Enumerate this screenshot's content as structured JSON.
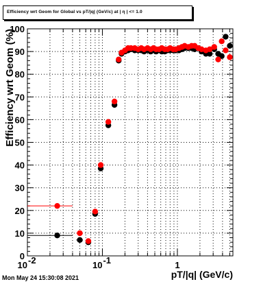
{
  "title": "Efficiency wrt Geom for Global vs pT/|q| (GeV/c) at | η | <= 1.0",
  "timestamp": "Mon May 24 15:30:08 2021",
  "chart_data": {
    "type": "scatter",
    "xlabel": "pT/|q| (GeV/c)",
    "ylabel": "Efficiency wrt Geom (%)",
    "x_scale": "log",
    "xlim": [
      0.01,
      5.5
    ],
    "ylim": [
      0,
      100
    ],
    "y_ticks": [
      0,
      10,
      20,
      30,
      40,
      50,
      60,
      70,
      80,
      90,
      100
    ],
    "x_tick_labels": [
      {
        "value": 0.01,
        "base": "10",
        "exp": "-2"
      },
      {
        "value": 0.1,
        "base": "10",
        "exp": "-1"
      },
      {
        "value": 1,
        "base": "1",
        "exp": ""
      }
    ],
    "grid": true,
    "series": [
      {
        "color": "#000000",
        "points": [
          {
            "x": 0.025,
            "y": 9,
            "xlo": 0.01,
            "xhi": 0.04
          },
          {
            "x": 0.05,
            "y": 7,
            "xlo": 0.045,
            "xhi": 0.055
          },
          {
            "x": 0.065,
            "y": 6
          },
          {
            "x": 0.08,
            "y": 18.5
          },
          {
            "x": 0.095,
            "y": 38.5,
            "xlo": 0.09,
            "xhi": 0.1
          },
          {
            "x": 0.12,
            "y": 57.5
          },
          {
            "x": 0.145,
            "y": 66.5
          },
          {
            "x": 0.165,
            "y": 86
          },
          {
            "x": 0.18,
            "y": 89
          },
          {
            "x": 0.2,
            "y": 90
          },
          {
            "x": 0.22,
            "y": 90.5
          },
          {
            "x": 0.24,
            "y": 91
          },
          {
            "x": 0.27,
            "y": 90.5
          },
          {
            "x": 0.3,
            "y": 90.5
          },
          {
            "x": 0.33,
            "y": 90.5
          },
          {
            "x": 0.36,
            "y": 90
          },
          {
            "x": 0.4,
            "y": 90.5
          },
          {
            "x": 0.44,
            "y": 90
          },
          {
            "x": 0.48,
            "y": 90.5
          },
          {
            "x": 0.52,
            "y": 90
          },
          {
            "x": 0.57,
            "y": 90.5
          },
          {
            "x": 0.62,
            "y": 90
          },
          {
            "x": 0.68,
            "y": 90
          },
          {
            "x": 0.74,
            "y": 90.5
          },
          {
            "x": 0.8,
            "y": 90.5
          },
          {
            "x": 0.88,
            "y": 90.5
          },
          {
            "x": 0.95,
            "y": 90.5
          },
          {
            "x": 1.05,
            "y": 90.5
          },
          {
            "x": 1.15,
            "y": 91
          },
          {
            "x": 1.25,
            "y": 91.5
          },
          {
            "x": 1.4,
            "y": 91.5
          },
          {
            "x": 1.55,
            "y": 91.5
          },
          {
            "x": 1.7,
            "y": 91
          },
          {
            "x": 1.9,
            "y": 91.5
          },
          {
            "x": 2.1,
            "y": 90
          },
          {
            "x": 2.4,
            "y": 89
          },
          {
            "x": 2.7,
            "y": 89
          },
          {
            "x": 3.1,
            "y": 91
          },
          {
            "x": 3.5,
            "y": 89
          },
          {
            "x": 3.9,
            "y": 88
          },
          {
            "x": 4.4,
            "y": 96.5
          },
          {
            "x": 5.0,
            "y": 92.5
          }
        ]
      },
      {
        "color": "#ff0000",
        "points": [
          {
            "x": 0.025,
            "y": 22,
            "xlo": 0.01,
            "xhi": 0.04
          },
          {
            "x": 0.05,
            "y": 10,
            "xlo": 0.045,
            "xhi": 0.055
          },
          {
            "x": 0.065,
            "y": 6.5
          },
          {
            "x": 0.08,
            "y": 19.5
          },
          {
            "x": 0.095,
            "y": 40,
            "xlo": 0.09,
            "xhi": 0.1
          },
          {
            "x": 0.12,
            "y": 59
          },
          {
            "x": 0.145,
            "y": 68
          },
          {
            "x": 0.165,
            "y": 86.5
          },
          {
            "x": 0.18,
            "y": 89.5
          },
          {
            "x": 0.2,
            "y": 90.5
          },
          {
            "x": 0.22,
            "y": 91.5
          },
          {
            "x": 0.24,
            "y": 91.5
          },
          {
            "x": 0.27,
            "y": 91.5
          },
          {
            "x": 0.3,
            "y": 91
          },
          {
            "x": 0.33,
            "y": 91.5
          },
          {
            "x": 0.36,
            "y": 91
          },
          {
            "x": 0.4,
            "y": 91.5
          },
          {
            "x": 0.44,
            "y": 91
          },
          {
            "x": 0.48,
            "y": 91.5
          },
          {
            "x": 0.52,
            "y": 91
          },
          {
            "x": 0.57,
            "y": 91
          },
          {
            "x": 0.62,
            "y": 91.5
          },
          {
            "x": 0.68,
            "y": 91
          },
          {
            "x": 0.74,
            "y": 91
          },
          {
            "x": 0.8,
            "y": 91.5
          },
          {
            "x": 0.88,
            "y": 91
          },
          {
            "x": 0.95,
            "y": 91
          },
          {
            "x": 1.05,
            "y": 91.5
          },
          {
            "x": 1.15,
            "y": 92
          },
          {
            "x": 1.25,
            "y": 92.5
          },
          {
            "x": 1.4,
            "y": 92
          },
          {
            "x": 1.55,
            "y": 92.5
          },
          {
            "x": 1.7,
            "y": 92.5
          },
          {
            "x": 1.9,
            "y": 91.5
          },
          {
            "x": 2.1,
            "y": 91
          },
          {
            "x": 2.4,
            "y": 90.5
          },
          {
            "x": 2.7,
            "y": 91
          },
          {
            "x": 3.1,
            "y": 92
          },
          {
            "x": 3.5,
            "y": 86.5
          },
          {
            "x": 3.9,
            "y": 94.5
          },
          {
            "x": 4.4,
            "y": 90.5
          },
          {
            "x": 5.0,
            "y": 87.5
          }
        ]
      }
    ]
  }
}
